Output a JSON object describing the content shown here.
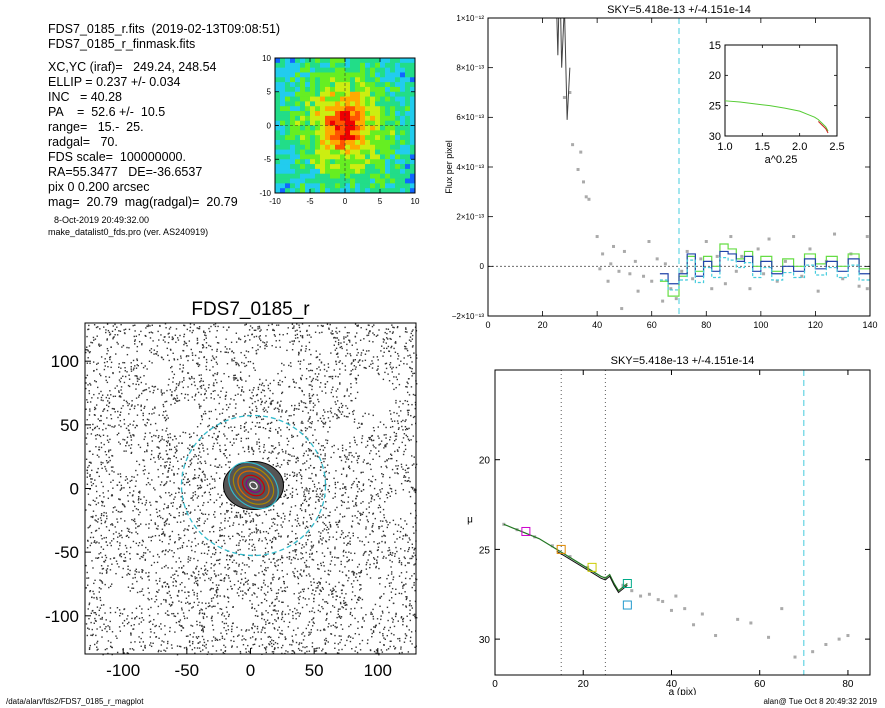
{
  "info": {
    "lines": [
      "FDS7_0185_r.fits  (2019-02-13T09:08:51)",
      "FDS7_0185_r_finmask.fits",
      "XC,YC (iraf)=   249.24, 248.54",
      "ELLIP = 0.237 +/- 0.034",
      "INC   = 40.28",
      "PA    =  52.6 +/-  10.5",
      "range=   15.-  25.",
      "radgal=   70.",
      "FDS scale=  100000000.",
      "RA=55.3477   DE=-36.6537",
      "pix 0 0.200 arcsec",
      "mag=  20.79  mag(radgal)=  20.79"
    ],
    "small_lines": [
      "8-Oct-2019 20:49:32.00",
      "make_datalist0_fds.pro (ver. AS240919)"
    ]
  },
  "footer": {
    "left": "/data/alan/fds2/FDS7_0185_r_magplot",
    "right": "alan@  Tue Oct  8 20:49:32 2019"
  },
  "chart_data": [
    {
      "type": "heatmap",
      "xlim": [
        -10,
        10
      ],
      "ylim": [
        -10,
        10
      ],
      "x_ticks": [
        "-10",
        "-5",
        "0",
        "5",
        "10"
      ],
      "y_ticks": [
        "10",
        "5",
        "0",
        "-5",
        "-10"
      ]
    },
    {
      "type": "scatter",
      "title": "FDS7_0185_r",
      "xlim": [
        -140,
        140
      ],
      "ylim": [
        -140,
        140
      ],
      "x_ticks": [
        "-100",
        "-50",
        "0",
        "50",
        "100"
      ],
      "y_ticks": [
        "100",
        "50",
        "0",
        "-50",
        "-100"
      ]
    },
    {
      "type": "line",
      "title": "SKY=5.418e-13 +/-4.151e-14",
      "ylabel": "Flux per pixel",
      "xlim": [
        0,
        140
      ],
      "ylim": [
        -2e-13,
        1e-12
      ],
      "x_ticks": [
        "0",
        "20",
        "40",
        "60",
        "80",
        "100",
        "120",
        "140"
      ],
      "y_ticks": [
        "1×10⁻¹²",
        "8×10⁻¹³",
        "6×10⁻¹³",
        "4×10⁻¹³",
        "2×10⁻¹³",
        "0",
        "−2×10⁻¹³"
      ],
      "vline": 70,
      "profile": [
        [
          25,
          1.1e-12
        ],
        [
          25.6,
          8.5e-13
        ],
        [
          26.3,
          1.2e-12
        ],
        [
          27,
          8e-13
        ],
        [
          28,
          1.05e-12
        ],
        [
          29,
          5.9e-13
        ],
        [
          30,
          8e-13
        ]
      ],
      "scatter": [
        [
          28,
          6.8e-13
        ],
        [
          30,
          7e-13
        ],
        [
          31,
          4.9e-13
        ],
        [
          33,
          3.9e-13
        ],
        [
          34,
          4.6e-13
        ],
        [
          35,
          3.4e-13
        ],
        [
          36,
          2.8e-13
        ],
        [
          37,
          2.7e-13
        ],
        [
          40,
          1.2e-13
        ],
        [
          41,
          -1e-14
        ],
        [
          42,
          5e-14
        ],
        [
          44,
          -6e-14
        ],
        [
          45,
          1e-14
        ],
        [
          46,
          8e-14
        ],
        [
          48,
          -2e-14
        ],
        [
          49,
          -1.7e-13
        ],
        [
          50,
          6e-14
        ],
        [
          52,
          -3e-14
        ],
        [
          54,
          2e-14
        ],
        [
          55,
          -1e-13
        ],
        [
          57,
          -4e-14
        ],
        [
          59,
          1e-13
        ],
        [
          60,
          -6e-14
        ],
        [
          62,
          3e-14
        ],
        [
          64,
          -1.4e-13
        ],
        [
          65,
          1e-14
        ],
        [
          67,
          -9e-14
        ],
        [
          69,
          -1.3e-13
        ],
        [
          71,
          -2e-14
        ],
        [
          73,
          6e-14
        ],
        [
          75,
          -5e-14
        ],
        [
          78,
          3e-14
        ],
        [
          80,
          1e-13
        ],
        [
          82,
          -9e-14
        ],
        [
          84,
          4e-14
        ],
        [
          87,
          -7e-14
        ],
        [
          89,
          1.2e-13
        ],
        [
          91,
          -2e-14
        ],
        [
          93,
          4e-14
        ],
        [
          96,
          -9e-14
        ],
        [
          99,
          7e-14
        ],
        [
          101,
          -3e-14
        ],
        [
          103,
          1.1e-13
        ],
        [
          106,
          -6e-14
        ],
        [
          109,
          2e-14
        ],
        [
          112,
          1.2e-13
        ],
        [
          115,
          -4e-14
        ],
        [
          118,
          7e-14
        ],
        [
          121,
          -1e-13
        ],
        [
          124,
          2e-14
        ],
        [
          127,
          1.3e-13
        ],
        [
          130,
          -5e-14
        ],
        [
          133,
          5e-14
        ],
        [
          136,
          -8e-14
        ],
        [
          139,
          1.2e-13
        ],
        [
          139,
          -9e-14
        ]
      ],
      "steps_blue": [
        [
          63,
          -3e-14
        ],
        [
          66,
          -7e-14
        ],
        [
          70,
          -3e-14
        ],
        [
          73,
          5e-14
        ],
        [
          76,
          -4e-14
        ],
        [
          79,
          2e-14
        ],
        [
          82,
          -2e-14
        ],
        [
          85,
          6e-14
        ],
        [
          88,
          5e-14
        ],
        [
          91,
          2e-14
        ],
        [
          94,
          4e-14
        ],
        [
          97,
          -2e-14
        ],
        [
          100,
          2e-14
        ],
        [
          104,
          -3e-14
        ],
        [
          108,
          0
        ],
        [
          112,
          -2e-14
        ],
        [
          116,
          3e-14
        ],
        [
          120,
          -1e-14
        ],
        [
          124,
          2e-14
        ],
        [
          128,
          -2e-14
        ],
        [
          132,
          3e-14
        ],
        [
          136,
          -3e-14
        ],
        [
          140,
          -3e-14
        ]
      ],
      "steps_green": [
        [
          63,
          -6e-14
        ],
        [
          66,
          -1.2e-13
        ],
        [
          70,
          -4e-14
        ],
        [
          73,
          4e-14
        ],
        [
          76,
          -2e-14
        ],
        [
          79,
          4e-14
        ],
        [
          82,
          0
        ],
        [
          85,
          9e-14
        ],
        [
          88,
          7e-14
        ],
        [
          91,
          3e-14
        ],
        [
          94,
          6e-14
        ],
        [
          97,
          0
        ],
        [
          100,
          4e-14
        ],
        [
          104,
          -2e-14
        ],
        [
          108,
          3e-14
        ],
        [
          112,
          0
        ],
        [
          116,
          5e-14
        ],
        [
          120,
          1e-14
        ],
        [
          124,
          4e-14
        ],
        [
          128,
          0
        ],
        [
          132,
          5e-14
        ],
        [
          136,
          -1e-14
        ],
        [
          140,
          -1e-14
        ]
      ],
      "inset": {
        "xlim": [
          1,
          2.5
        ],
        "ylim": [
          15,
          30
        ],
        "x_ticks": [
          "1.0",
          "1.5",
          "2.0",
          "2.5"
        ],
        "y_ticks": [
          "15",
          "20",
          "25",
          "30"
        ],
        "xlabel": "a^0.25",
        "curve": [
          [
            1.0,
            24.2
          ],
          [
            1.2,
            24.4
          ],
          [
            1.4,
            24.7
          ],
          [
            1.6,
            25.0
          ],
          [
            1.8,
            25.4
          ],
          [
            2.0,
            25.9
          ],
          [
            2.1,
            26.4
          ],
          [
            2.2,
            26.9
          ],
          [
            2.25,
            27.3
          ],
          [
            2.3,
            27.9
          ],
          [
            2.35,
            28.5
          ],
          [
            2.38,
            29.2
          ]
        ]
      }
    },
    {
      "type": "line",
      "title": "SKY=5.418e-13 +/-4.151e-14",
      "xlabel": "a (pix)",
      "ylabel": "μ",
      "xlim": [
        0,
        85
      ],
      "ylim": [
        32,
        15
      ],
      "x_ticks": [
        "0",
        "20",
        "40",
        "60",
        "80"
      ],
      "y_ticks": [
        "20",
        "25",
        "30"
      ],
      "vlines_dotted": [
        15,
        25
      ],
      "vline_dashed": 70,
      "profile": [
        [
          2,
          23.6
        ],
        [
          4,
          23.8
        ],
        [
          6,
          24.0
        ],
        [
          8,
          24.2
        ],
        [
          10,
          24.4
        ],
        [
          12,
          24.7
        ],
        [
          14,
          25.0
        ],
        [
          16,
          25.3
        ],
        [
          18,
          25.6
        ],
        [
          20,
          25.9
        ],
        [
          22,
          26.2
        ],
        [
          24,
          26.5
        ],
        [
          25,
          26.6
        ],
        [
          26,
          26.4
        ],
        [
          27,
          26.9
        ],
        [
          28,
          27.3
        ],
        [
          29,
          27.1
        ],
        [
          30,
          26.9
        ]
      ],
      "scatter": [
        [
          2,
          23.6
        ],
        [
          5,
          23.9
        ],
        [
          9,
          24.3
        ],
        [
          13,
          24.8
        ],
        [
          17,
          25.4
        ],
        [
          21,
          26.0
        ],
        [
          25,
          26.6
        ],
        [
          29,
          27.0
        ],
        [
          31,
          27.3
        ],
        [
          33,
          27.6
        ],
        [
          35,
          27.5
        ],
        [
          37,
          27.8
        ],
        [
          38,
          27.9
        ],
        [
          40,
          28.4
        ],
        [
          41,
          27.6
        ],
        [
          43,
          28.3
        ],
        [
          45,
          29.2
        ],
        [
          47,
          28.6
        ],
        [
          50,
          29.8
        ],
        [
          55,
          28.9
        ],
        [
          58,
          29.1
        ],
        [
          62,
          29.9
        ],
        [
          65,
          28.3
        ],
        [
          68,
          31.0
        ],
        [
          72,
          30.7
        ],
        [
          75,
          30.3
        ],
        [
          78,
          30.0
        ],
        [
          80,
          29.8
        ]
      ],
      "boxes": [
        [
          7,
          24.0,
          "#cc00cc"
        ],
        [
          15,
          25.0,
          "#dd8800"
        ],
        [
          22,
          26.0,
          "#cccc00"
        ],
        [
          30,
          26.9,
          "#00aa88"
        ],
        [
          30,
          28.1,
          "#2299cc"
        ]
      ]
    }
  ]
}
